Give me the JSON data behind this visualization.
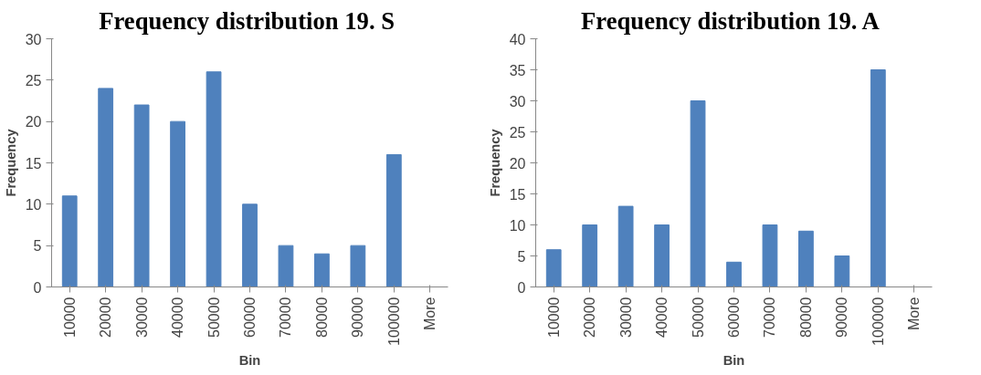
{
  "chart_data": [
    {
      "type": "bar",
      "title": "Frequency distribution  19. S",
      "xlabel": "Bin",
      "ylabel": "Frequency",
      "categories": [
        "10000",
        "20000",
        "30000",
        "40000",
        "50000",
        "60000",
        "70000",
        "80000",
        "90000",
        "100000",
        "More"
      ],
      "values": [
        11,
        24,
        22,
        20,
        26,
        10,
        5,
        4,
        5,
        16,
        0
      ],
      "color": "#4f81bd",
      "ylim": [
        0,
        30
      ],
      "yticks": [
        0,
        5,
        10,
        15,
        20,
        25,
        30
      ],
      "grid": false
    },
    {
      "type": "bar",
      "title": "Frequency distribution  19. A",
      "xlabel": "Bin",
      "ylabel": "Frequency",
      "categories": [
        "10000",
        "20000",
        "30000",
        "40000",
        "50000",
        "60000",
        "70000",
        "80000",
        "90000",
        "100000",
        "More"
      ],
      "values": [
        6,
        10,
        13,
        10,
        30,
        4,
        10,
        9,
        5,
        35,
        0
      ],
      "color": "#4f81bd",
      "ylim": [
        0,
        40
      ],
      "yticks": [
        0,
        5,
        10,
        15,
        20,
        25,
        30,
        35,
        40
      ],
      "grid": false
    }
  ]
}
